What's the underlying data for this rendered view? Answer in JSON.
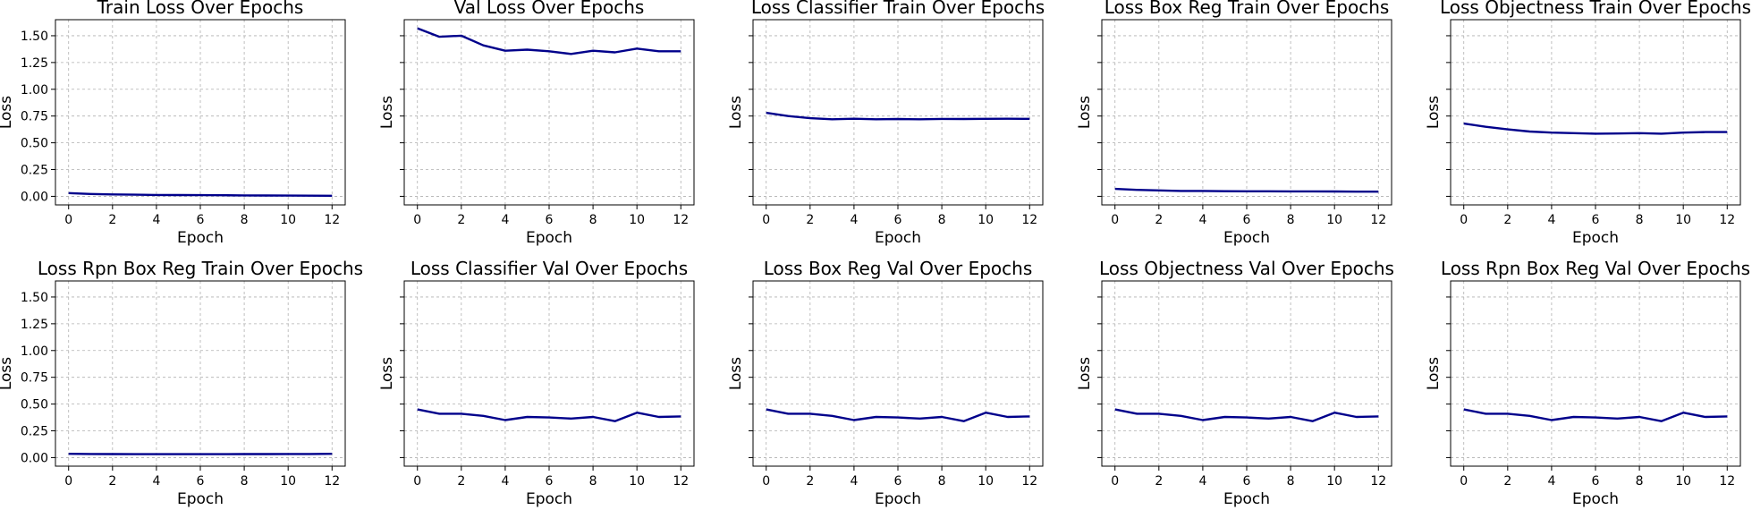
{
  "figure": {
    "line_color": "#00008b",
    "grid": true
  },
  "chart_data": [
    {
      "type": "line",
      "title": "Train Loss Over Epochs",
      "xlabel": "Epoch",
      "ylabel": "Loss",
      "x": [
        0,
        1,
        2,
        3,
        4,
        5,
        6,
        7,
        8,
        9,
        10,
        11,
        12
      ],
      "series": [
        {
          "values": [
            0.03,
            0.022,
            0.018,
            0.015,
            0.013,
            0.012,
            0.011,
            0.01,
            0.009,
            0.008,
            0.007,
            0.006,
            0.005
          ]
        }
      ],
      "ylim": [
        -0.08,
        1.65
      ],
      "xlim": [
        -0.6,
        12.6
      ],
      "xticks": [
        "0",
        "2",
        "4",
        "6",
        "8",
        "10",
        "12"
      ],
      "yticks": [
        "0.00",
        "0.25",
        "0.50",
        "0.75",
        "1.00",
        "1.25",
        "1.50"
      ],
      "show_ytick_labels": true
    },
    {
      "type": "line",
      "title": "Val Loss Over Epochs",
      "xlabel": "Epoch",
      "ylabel": "Loss",
      "x": [
        0,
        1,
        2,
        3,
        4,
        5,
        6,
        7,
        8,
        9,
        10,
        11,
        12
      ],
      "series": [
        {
          "values": [
            1.57,
            1.49,
            1.5,
            1.41,
            1.36,
            1.37,
            1.355,
            1.33,
            1.36,
            1.345,
            1.38,
            1.355,
            1.355
          ]
        }
      ],
      "ylim": [
        -0.08,
        1.65
      ],
      "xlim": [
        -0.6,
        12.6
      ],
      "xticks": [
        "0",
        "2",
        "4",
        "6",
        "8",
        "10",
        "12"
      ],
      "yticks": [
        "0.00",
        "0.25",
        "0.50",
        "0.75",
        "1.00",
        "1.25",
        "1.50"
      ],
      "show_ytick_labels": false
    },
    {
      "type": "line",
      "title": "Loss Classifier Train Over Epochs",
      "xlabel": "Epoch",
      "ylabel": "Loss",
      "x": [
        0,
        1,
        2,
        3,
        4,
        5,
        6,
        7,
        8,
        9,
        10,
        11,
        12
      ],
      "series": [
        {
          "values": [
            0.78,
            0.75,
            0.73,
            0.72,
            0.725,
            0.72,
            0.722,
            0.72,
            0.723,
            0.722,
            0.724,
            0.725,
            0.724
          ]
        }
      ],
      "ylim": [
        -0.08,
        1.65
      ],
      "xlim": [
        -0.6,
        12.6
      ],
      "xticks": [
        "0",
        "2",
        "4",
        "6",
        "8",
        "10",
        "12"
      ],
      "yticks": [
        "0.00",
        "0.25",
        "0.50",
        "0.75",
        "1.00",
        "1.25",
        "1.50"
      ],
      "show_ytick_labels": false
    },
    {
      "type": "line",
      "title": "Loss Box Reg Train Over Epochs",
      "xlabel": "Epoch",
      "ylabel": "Loss",
      "x": [
        0,
        1,
        2,
        3,
        4,
        5,
        6,
        7,
        8,
        9,
        10,
        11,
        12
      ],
      "series": [
        {
          "values": [
            0.07,
            0.06,
            0.055,
            0.05,
            0.05,
            0.048,
            0.047,
            0.047,
            0.046,
            0.046,
            0.045,
            0.044,
            0.044
          ]
        }
      ],
      "ylim": [
        -0.08,
        1.65
      ],
      "xlim": [
        -0.6,
        12.6
      ],
      "xticks": [
        "0",
        "2",
        "4",
        "6",
        "8",
        "10",
        "12"
      ],
      "yticks": [
        "0.00",
        "0.25",
        "0.50",
        "0.75",
        "1.00",
        "1.25",
        "1.50"
      ],
      "show_ytick_labels": false
    },
    {
      "type": "line",
      "title": "Loss Objectness Train Over Epochs",
      "xlabel": "Epoch",
      "ylabel": "Loss",
      "x": [
        0,
        1,
        2,
        3,
        4,
        5,
        6,
        7,
        8,
        9,
        10,
        11,
        12
      ],
      "series": [
        {
          "values": [
            0.68,
            0.65,
            0.625,
            0.605,
            0.595,
            0.59,
            0.585,
            0.587,
            0.59,
            0.585,
            0.595,
            0.6,
            0.6
          ]
        }
      ],
      "ylim": [
        -0.08,
        1.65
      ],
      "xlim": [
        -0.6,
        12.6
      ],
      "xticks": [
        "0",
        "2",
        "4",
        "6",
        "8",
        "10",
        "12"
      ],
      "yticks": [
        "0.00",
        "0.25",
        "0.50",
        "0.75",
        "1.00",
        "1.25",
        "1.50"
      ],
      "show_ytick_labels": false
    },
    {
      "type": "line",
      "title": "Loss Rpn Box Reg Train Over Epochs",
      "xlabel": "Epoch",
      "ylabel": "Loss",
      "x": [
        0,
        1,
        2,
        3,
        4,
        5,
        6,
        7,
        8,
        9,
        10,
        11,
        12
      ],
      "series": [
        {
          "values": [
            0.035,
            0.034,
            0.033,
            0.032,
            0.032,
            0.032,
            0.032,
            0.032,
            0.033,
            0.033,
            0.034,
            0.034,
            0.035
          ]
        }
      ],
      "ylim": [
        -0.08,
        1.65
      ],
      "xlim": [
        -0.6,
        12.6
      ],
      "xticks": [
        "0",
        "2",
        "4",
        "6",
        "8",
        "10",
        "12"
      ],
      "yticks": [
        "0.00",
        "0.25",
        "0.50",
        "0.75",
        "1.00",
        "1.25",
        "1.50"
      ],
      "show_ytick_labels": true
    },
    {
      "type": "line",
      "title": "Loss Classifier Val Over Epochs",
      "xlabel": "Epoch",
      "ylabel": "Loss",
      "x": [
        0,
        1,
        2,
        3,
        4,
        5,
        6,
        7,
        8,
        9,
        10,
        11,
        12
      ],
      "series": [
        {
          "values": [
            0.45,
            0.41,
            0.41,
            0.39,
            0.35,
            0.38,
            0.375,
            0.365,
            0.38,
            0.34,
            0.42,
            0.38,
            0.385
          ]
        }
      ],
      "ylim": [
        -0.08,
        1.65
      ],
      "xlim": [
        -0.6,
        12.6
      ],
      "xticks": [
        "0",
        "2",
        "4",
        "6",
        "8",
        "10",
        "12"
      ],
      "yticks": [
        "0.00",
        "0.25",
        "0.50",
        "0.75",
        "1.00",
        "1.25",
        "1.50"
      ],
      "show_ytick_labels": false
    },
    {
      "type": "line",
      "title": "Loss Box Reg Val Over Epochs",
      "xlabel": "Epoch",
      "ylabel": "Loss",
      "x": [
        0,
        1,
        2,
        3,
        4,
        5,
        6,
        7,
        8,
        9,
        10,
        11,
        12
      ],
      "series": [
        {
          "values": [
            0.45,
            0.41,
            0.41,
            0.39,
            0.35,
            0.38,
            0.375,
            0.365,
            0.38,
            0.34,
            0.42,
            0.38,
            0.385
          ]
        }
      ],
      "ylim": [
        -0.08,
        1.65
      ],
      "xlim": [
        -0.6,
        12.6
      ],
      "xticks": [
        "0",
        "2",
        "4",
        "6",
        "8",
        "10",
        "12"
      ],
      "yticks": [
        "0.00",
        "0.25",
        "0.50",
        "0.75",
        "1.00",
        "1.25",
        "1.50"
      ],
      "show_ytick_labels": false
    },
    {
      "type": "line",
      "title": "Loss Objectness Val Over Epochs",
      "xlabel": "Epoch",
      "ylabel": "Loss",
      "x": [
        0,
        1,
        2,
        3,
        4,
        5,
        6,
        7,
        8,
        9,
        10,
        11,
        12
      ],
      "series": [
        {
          "values": [
            0.45,
            0.41,
            0.41,
            0.39,
            0.35,
            0.38,
            0.375,
            0.365,
            0.38,
            0.34,
            0.42,
            0.38,
            0.385
          ]
        }
      ],
      "ylim": [
        -0.08,
        1.65
      ],
      "xlim": [
        -0.6,
        12.6
      ],
      "xticks": [
        "0",
        "2",
        "4",
        "6",
        "8",
        "10",
        "12"
      ],
      "yticks": [
        "0.00",
        "0.25",
        "0.50",
        "0.75",
        "1.00",
        "1.25",
        "1.50"
      ],
      "show_ytick_labels": false
    },
    {
      "type": "line",
      "title": "Loss Rpn Box Reg Val Over Epochs",
      "xlabel": "Epoch",
      "ylabel": "Loss",
      "x": [
        0,
        1,
        2,
        3,
        4,
        5,
        6,
        7,
        8,
        9,
        10,
        11,
        12
      ],
      "series": [
        {
          "values": [
            0.45,
            0.41,
            0.41,
            0.39,
            0.35,
            0.38,
            0.375,
            0.365,
            0.38,
            0.34,
            0.42,
            0.38,
            0.385
          ]
        }
      ],
      "ylim": [
        -0.08,
        1.65
      ],
      "xlim": [
        -0.6,
        12.6
      ],
      "xticks": [
        "0",
        "2",
        "4",
        "6",
        "8",
        "10",
        "12"
      ],
      "yticks": [
        "0.00",
        "0.25",
        "0.50",
        "0.75",
        "1.00",
        "1.25",
        "1.50"
      ],
      "show_ytick_labels": false
    }
  ]
}
